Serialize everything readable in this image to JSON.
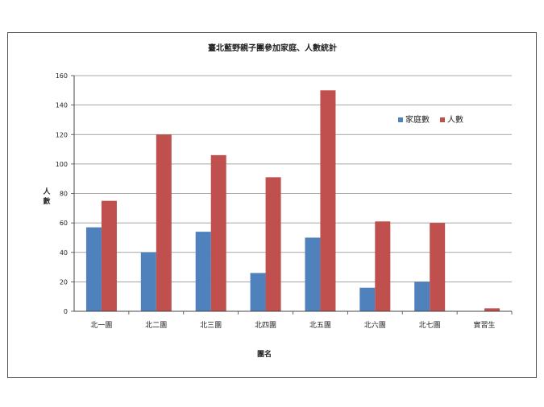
{
  "chart_data": {
    "type": "bar",
    "title": "臺北藍野親子團參加家庭、人數統計",
    "xlabel": "團名",
    "ylabel": "人數",
    "categories": [
      "北一團",
      "北二團",
      "北三團",
      "北四團",
      "北五團",
      "北六團",
      "北七團",
      "實習生"
    ],
    "series": [
      {
        "name": "家庭數",
        "color": "#4f81bd",
        "values": [
          57,
          40,
          54,
          26,
          50,
          16,
          20,
          0
        ]
      },
      {
        "name": "人數",
        "color": "#c0504d",
        "values": [
          75,
          120,
          106,
          91,
          150,
          61,
          60,
          2
        ]
      }
    ],
    "ylim": [
      0,
      160
    ],
    "yticks": [
      0,
      20,
      40,
      60,
      80,
      100,
      120,
      140,
      160
    ],
    "grid": true,
    "legend_position": "top-right"
  }
}
